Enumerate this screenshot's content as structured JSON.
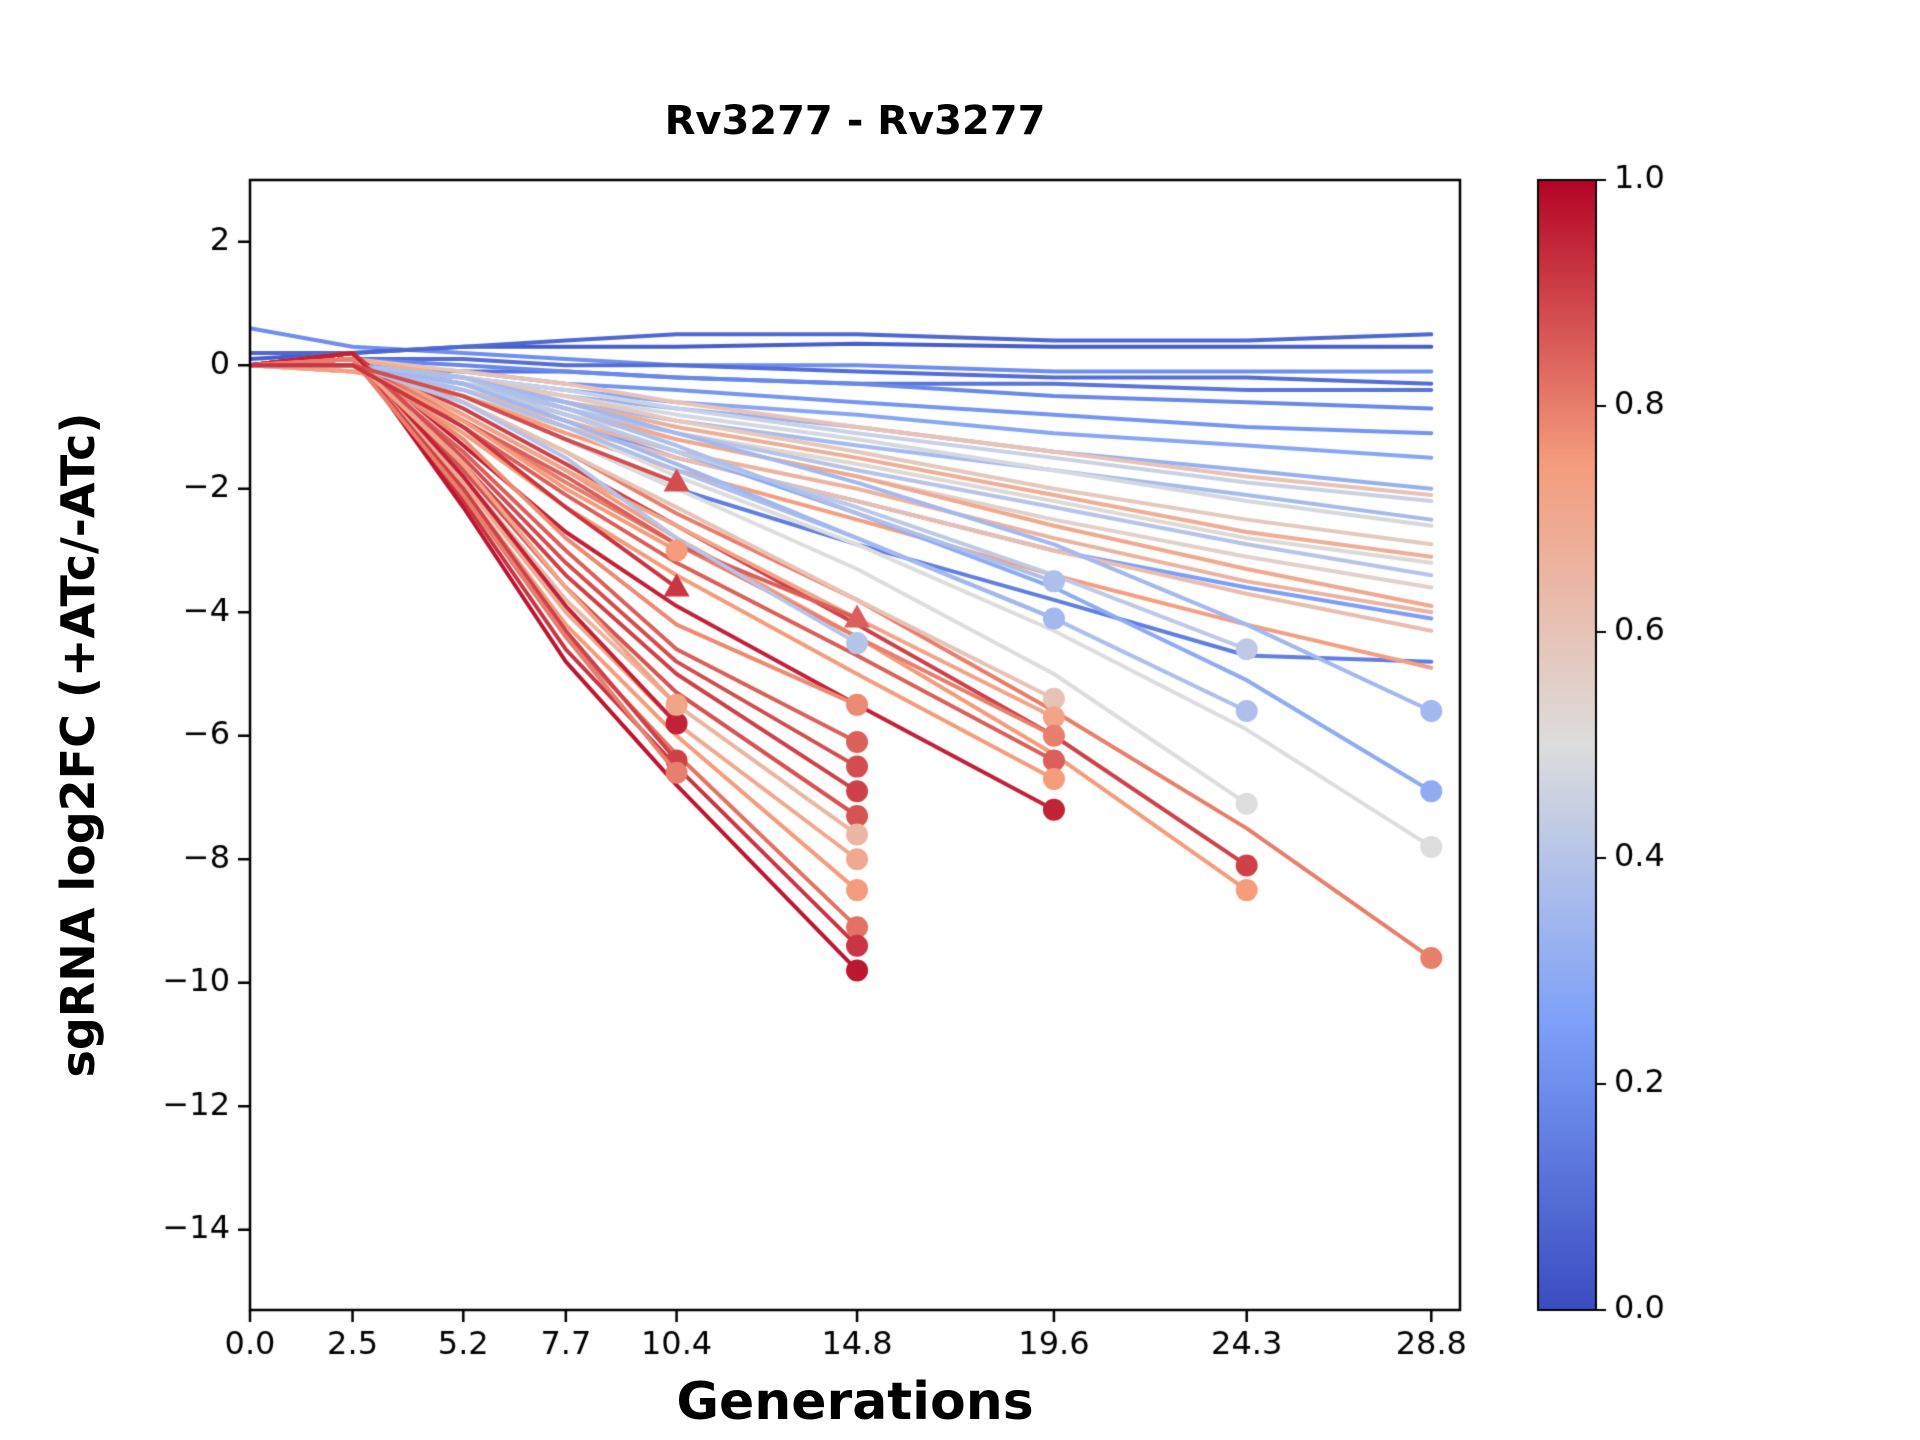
{
  "chart_data": {
    "type": "line",
    "title": "Rv3277 - Rv3277",
    "xlabel": "Generations",
    "ylabel": "sgRNA log2FC (+ATc/-ATc)",
    "x_ticks": [
      0.0,
      2.5,
      5.2,
      7.7,
      10.4,
      14.8,
      19.6,
      24.3,
      28.8
    ],
    "x_tick_labels": [
      "0.0",
      "2.5",
      "5.2",
      "7.7",
      "10.4",
      "14.8",
      "19.6",
      "24.3",
      "28.8"
    ],
    "y_ticks": [
      2,
      0,
      -2,
      -4,
      -6,
      -8,
      -10,
      -12,
      -14
    ],
    "y_tick_labels": [
      "2",
      "0",
      "−2",
      "−4",
      "−6",
      "−8",
      "−10",
      "−12",
      "−14"
    ],
    "xlim": [
      0,
      29.5
    ],
    "ylim": [
      -15.3,
      3.0
    ],
    "grid": false,
    "background": "#ffffff",
    "axis_color": "#000000",
    "colorbar": {
      "ticks": [
        0.0,
        0.2,
        0.4,
        0.6,
        0.8,
        1.0
      ],
      "tick_labels": [
        "0.0",
        "0.2",
        "0.4",
        "0.6",
        "0.8",
        "1.0"
      ],
      "vmin": 0.0,
      "vmax": 1.0
    },
    "colormap": {
      "name": "coolwarm",
      "stops": [
        {
          "t": 0.0,
          "color": "#3b4cc0"
        },
        {
          "t": 0.25,
          "color": "#7c9ff9"
        },
        {
          "t": 0.5,
          "color": "#dddddd"
        },
        {
          "t": 0.75,
          "color": "#f59c7d"
        },
        {
          "t": 1.0,
          "color": "#b40426"
        }
      ]
    },
    "series": [
      {
        "c": 0.2,
        "y": [
          0.6,
          0.3,
          0.2,
          0.1,
          0.0,
          0.0,
          -0.1,
          -0.1,
          -0.1
        ],
        "marker": null
      },
      {
        "c": 0.05,
        "y": [
          0.1,
          0.2,
          0.3,
          0.3,
          0.3,
          0.35,
          0.3,
          0.3,
          0.3
        ],
        "marker": null
      },
      {
        "c": 0.1,
        "y": [
          0,
          0.1,
          0.1,
          0,
          0,
          -0.1,
          -0.2,
          -0.2,
          -0.3
        ],
        "marker": null
      },
      {
        "c": 0.12,
        "y": [
          0,
          0,
          -0.1,
          -0.1,
          -0.2,
          -0.3,
          -0.3,
          -0.4,
          -0.4
        ],
        "marker": null
      },
      {
        "c": 0.08,
        "y": [
          0.2,
          0.2,
          0.3,
          0.4,
          0.5,
          0.5,
          0.4,
          0.4,
          0.5
        ],
        "marker": null
      },
      {
        "c": 0.18,
        "y": [
          0,
          0.1,
          0,
          -0.1,
          -0.2,
          -0.3,
          -0.5,
          -0.6,
          -0.7
        ],
        "marker": null
      },
      {
        "c": 0.22,
        "y": [
          0,
          0,
          -0.1,
          -0.3,
          -0.4,
          -0.6,
          -0.8,
          -1.0,
          -1.1
        ],
        "marker": null
      },
      {
        "c": 0.28,
        "y": [
          0,
          -0.1,
          -0.2,
          -0.4,
          -0.6,
          -0.8,
          -1.1,
          -1.3,
          -1.5
        ],
        "marker": null
      },
      {
        "c": 0.32,
        "y": [
          0,
          0,
          -0.2,
          -0.5,
          -0.7,
          -1.0,
          -1.4,
          -1.7,
          -2.0
        ],
        "marker": null
      },
      {
        "c": 0.36,
        "y": [
          0,
          -0.1,
          -0.3,
          -0.6,
          -0.9,
          -1.3,
          -1.7,
          -2.1,
          -2.5
        ],
        "marker": null
      },
      {
        "c": 0.15,
        "y": [
          0,
          0,
          -0.5,
          -1.2,
          -2.0,
          -2.9,
          -3.8,
          -4.7,
          -4.8
        ],
        "marker": null
      },
      {
        "c": 0.25,
        "y": [
          0,
          0,
          -0.4,
          -0.9,
          -1.5,
          -2.2,
          -3.0,
          -3.6,
          -4.1
        ],
        "marker": null
      },
      {
        "c": 0.45,
        "y": [
          0,
          0,
          -0.2,
          -0.4,
          -0.7,
          -1.1,
          -1.5,
          -1.9,
          -2.2
        ],
        "marker": null
      },
      {
        "c": 0.48,
        "y": [
          0,
          -0.1,
          -0.3,
          -0.5,
          -0.8,
          -1.2,
          -1.7,
          -2.2,
          -2.6
        ],
        "marker": null
      },
      {
        "c": 0.52,
        "y": [
          0,
          0,
          -0.3,
          -0.7,
          -1.1,
          -1.6,
          -2.2,
          -2.8,
          -3.2
        ],
        "marker": null
      },
      {
        "c": 0.55,
        "y": [
          0,
          -0.1,
          -0.4,
          -0.8,
          -1.2,
          -1.8,
          -2.5,
          -3.1,
          -3.6
        ],
        "marker": null
      },
      {
        "c": 0.58,
        "y": [
          0,
          0,
          -0.2,
          -0.5,
          -0.9,
          -1.4,
          -2.0,
          -2.5,
          -2.9
        ],
        "marker": null
      },
      {
        "c": 0.62,
        "y": [
          0,
          -0.1,
          -0.5,
          -1.0,
          -1.5,
          -2.2,
          -3.0,
          -3.7,
          -4.3
        ],
        "marker": null
      },
      {
        "c": 0.66,
        "y": [
          0,
          -0.1,
          -0.4,
          -0.9,
          -1.4,
          -2.0,
          -2.8,
          -3.5,
          -4.0
        ],
        "marker": null
      },
      {
        "c": 0.7,
        "y": [
          0,
          0,
          -0.3,
          -0.7,
          -1.2,
          -1.8,
          -2.6,
          -3.3,
          -3.9
        ],
        "marker": null
      },
      {
        "c": 0.74,
        "y": [
          0,
          -0.1,
          -0.5,
          -1.1,
          -1.7,
          -2.5,
          -3.4,
          -4.2,
          -4.9
        ],
        "marker": null
      },
      {
        "c": 0.6,
        "y": [
          0,
          0.1,
          -0.1,
          -0.3,
          -0.6,
          -1.0,
          -1.4,
          -1.8,
          -2.1
        ],
        "marker": null
      },
      {
        "c": 0.4,
        "y": [
          0,
          0,
          -0.3,
          -0.7,
          -1.1,
          -1.7,
          -2.3,
          -2.9,
          -3.4
        ],
        "marker": null
      },
      {
        "c": 0.68,
        "y": [
          0,
          0.1,
          -0.2,
          -0.6,
          -1.0,
          -1.5,
          -2.1,
          -2.7,
          -3.1
        ],
        "marker": null
      },
      {
        "c": 0.35,
        "y": [
          0,
          0,
          -0.2,
          -0.6,
          -1.1,
          -1.9,
          -2.9,
          -4.2,
          -5.6
        ],
        "marker": "circle"
      },
      {
        "c": 0.3,
        "y": [
          0,
          0,
          -0.3,
          -0.8,
          -1.4,
          -2.4,
          -3.6,
          -5.1,
          -6.9
        ],
        "marker": "circle"
      },
      {
        "c": 0.5,
        "y": [
          0,
          0,
          -0.4,
          -1.0,
          -1.8,
          -2.9,
          -4.3,
          -5.9,
          -7.8
        ],
        "marker": "circle"
      },
      {
        "c": 0.8,
        "y": [
          0,
          0.1,
          -0.6,
          -1.4,
          -2.4,
          -3.8,
          -5.6,
          -7.5,
          -9.6
        ],
        "marker": "circle"
      },
      {
        "c": 0.42,
        "y": [
          0,
          0,
          -0.3,
          -0.8,
          -1.4,
          -2.3,
          -3.4,
          -4.6
        ],
        "marker": "circle"
      },
      {
        "c": 0.38,
        "y": [
          0,
          0,
          -0.4,
          -1.0,
          -1.7,
          -2.8,
          -4.1,
          -5.6
        ],
        "marker": "circle"
      },
      {
        "c": 0.5,
        "y": [
          0,
          0,
          -0.5,
          -1.2,
          -2.0,
          -3.3,
          -5.0,
          -7.1
        ],
        "marker": "circle"
      },
      {
        "c": 0.9,
        "y": [
          0,
          0.1,
          -0.7,
          -1.6,
          -2.6,
          -4.2,
          -6.0,
          -8.1
        ],
        "marker": "circle"
      },
      {
        "c": 0.75,
        "y": [
          0,
          0.1,
          -0.8,
          -1.7,
          -2.8,
          -4.4,
          -6.3,
          -8.5
        ],
        "marker": "circle"
      },
      {
        "c": 0.6,
        "y": [
          0,
          0,
          -0.6,
          -1.4,
          -2.3,
          -3.8,
          -5.4
        ],
        "marker": "circle"
      },
      {
        "c": 0.72,
        "y": [
          0,
          0.1,
          -0.8,
          -1.7,
          -2.6,
          -4.1,
          -5.7
        ],
        "marker": "circle"
      },
      {
        "c": 0.8,
        "y": [
          0,
          0.1,
          -0.9,
          -1.9,
          -2.9,
          -4.4,
          -6.0
        ],
        "marker": "circle"
      },
      {
        "c": 0.85,
        "y": [
          0,
          0.1,
          -1.0,
          -2.1,
          -3.2,
          -4.7,
          -6.4
        ],
        "marker": "circle"
      },
      {
        "c": 0.75,
        "y": [
          0,
          0,
          -1.1,
          -2.3,
          -3.4,
          -5.0,
          -6.7
        ],
        "marker": "circle"
      },
      {
        "c": 0.95,
        "y": [
          0,
          0.2,
          -1.3,
          -2.7,
          -3.9,
          -5.5,
          -7.2
        ],
        "marker": "circle"
      },
      {
        "c": 0.35,
        "y": [
          0,
          0,
          -0.3,
          -0.9,
          -1.6,
          -2.8,
          -4.1
        ],
        "marker": "circle"
      },
      {
        "c": 0.38,
        "y": [
          0,
          0,
          -0.2,
          -0.7,
          -1.3,
          -2.4,
          -3.5
        ],
        "marker": "circle"
      },
      {
        "c": 0.78,
        "y": [
          0,
          0.1,
          -1.2,
          -2.8,
          -4.2,
          -5.5
        ],
        "marker": "circle"
      },
      {
        "c": 0.85,
        "y": [
          0,
          0.1,
          -1.4,
          -3.0,
          -4.6,
          -6.1
        ],
        "marker": "circle"
      },
      {
        "c": 0.88,
        "y": [
          0,
          0.2,
          -1.5,
          -3.2,
          -4.8,
          -6.5
        ],
        "marker": "circle"
      },
      {
        "c": 0.9,
        "y": [
          0,
          0.1,
          -1.6,
          -3.4,
          -5.0,
          -6.9
        ],
        "marker": "circle"
      },
      {
        "c": 0.87,
        "y": [
          0,
          0.2,
          -1.7,
          -3.6,
          -5.3,
          -7.3
        ],
        "marker": "circle"
      },
      {
        "c": 0.65,
        "y": [
          0,
          0.1,
          -1.8,
          -3.8,
          -5.5,
          -7.6
        ],
        "marker": "circle"
      },
      {
        "c": 0.7,
        "y": [
          0,
          0.2,
          -1.9,
          -4.0,
          -5.8,
          -8.0
        ],
        "marker": "circle"
      },
      {
        "c": 0.75,
        "y": [
          0,
          0.1,
          -2.0,
          -4.2,
          -6.0,
          -8.5
        ],
        "marker": "circle"
      },
      {
        "c": 0.82,
        "y": [
          0,
          0.2,
          -2.1,
          -4.4,
          -6.3,
          -9.1
        ],
        "marker": "circle"
      },
      {
        "c": 0.92,
        "y": [
          0,
          0.2,
          -2.2,
          -4.6,
          -6.5,
          -9.4
        ],
        "marker": "circle"
      },
      {
        "c": 0.97,
        "y": [
          0,
          0.2,
          -2.3,
          -4.8,
          -6.8,
          -9.8
        ],
        "marker": "circle"
      },
      {
        "c": 0.85,
        "y": [
          0,
          0,
          -0.9,
          -1.8,
          -2.9,
          -4.1
        ],
        "marker": "triangle"
      },
      {
        "c": 0.4,
        "y": [
          0,
          0,
          -0.6,
          -1.5,
          -2.8,
          -4.5
        ],
        "marker": "circle"
      },
      {
        "c": 0.95,
        "y": [
          0,
          0.2,
          -1.8,
          -3.9,
          -5.8
        ],
        "marker": "circle"
      },
      {
        "c": 0.9,
        "y": [
          0,
          0.1,
          -2.0,
          -4.3,
          -6.4
        ],
        "marker": "circle"
      },
      {
        "c": 0.72,
        "y": [
          0,
          0.1,
          -1.6,
          -3.6,
          -5.5
        ],
        "marker": "circle"
      },
      {
        "c": 0.8,
        "y": [
          0,
          0.1,
          -2.1,
          -4.4,
          -6.6
        ],
        "marker": "circle"
      },
      {
        "c": 0.75,
        "y": [
          0,
          0,
          -0.9,
          -2.0,
          -3.0
        ],
        "marker": "circle"
      },
      {
        "c": 0.88,
        "y": [
          0,
          0,
          -0.5,
          -1.2,
          -1.9
        ],
        "marker": "triangle"
      },
      {
        "c": 0.92,
        "y": [
          0,
          0,
          -1.0,
          -2.3,
          -3.6
        ],
        "marker": "triangle"
      }
    ]
  }
}
